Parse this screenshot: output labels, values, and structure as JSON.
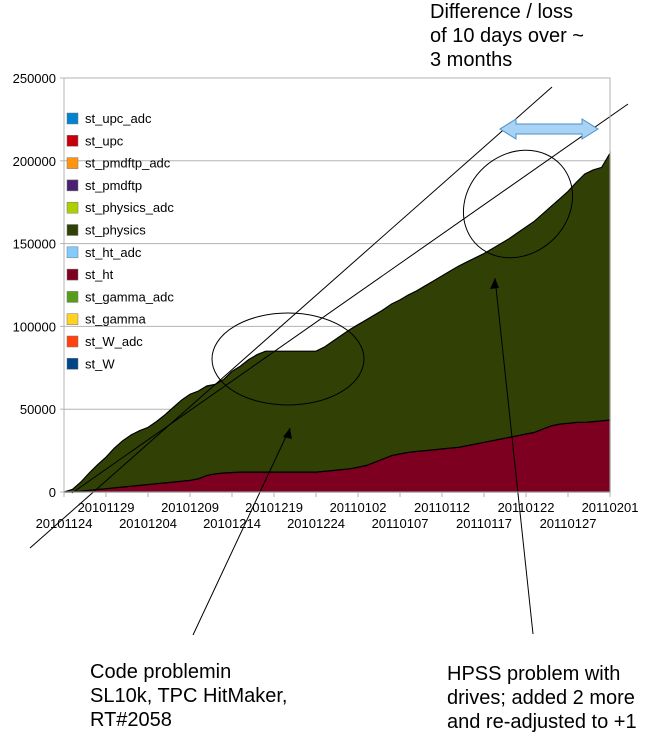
{
  "chart_data": {
    "type": "area",
    "stacked": true,
    "title": "",
    "xlabel": "",
    "ylabel": "",
    "ylim": [
      0,
      250000
    ],
    "y_ticks": [
      0,
      50000,
      100000,
      150000,
      200000,
      250000
    ],
    "y_tick_labels": [
      "0",
      "50000",
      "100000",
      "150000",
      "200000",
      "250000"
    ],
    "grid": true,
    "legend_position": "top-left",
    "x_tick_labels": [
      "20101124",
      "20101129",
      "20101204",
      "20101209",
      "20101214",
      "20101219",
      "20101224",
      "20110102",
      "20110107",
      "20110112",
      "20110117",
      "20110122",
      "20110127",
      "20110201"
    ],
    "x": [
      "20101124",
      "20101125",
      "20101126",
      "20101127",
      "20101128",
      "20101129",
      "20101130",
      "20101201",
      "20101202",
      "20101203",
      "20101204",
      "20101205",
      "20101206",
      "20101207",
      "20101208",
      "20101209",
      "20101210",
      "20101211",
      "20101212",
      "20101213",
      "20101214",
      "20101215",
      "20101216",
      "20101217",
      "20101218",
      "20101219",
      "20101220",
      "20101221",
      "20101222",
      "20101223",
      "20101224",
      "20101229",
      "20101230",
      "20101231",
      "20110101",
      "20110102",
      "20110103",
      "20110104",
      "20110105",
      "20110106",
      "20110107",
      "20110108",
      "20110109",
      "20110110",
      "20110111",
      "20110112",
      "20110113",
      "20110114",
      "20110115",
      "20110116",
      "20110117",
      "20110118",
      "20110119",
      "20110120",
      "20110121",
      "20110122",
      "20110123",
      "20110124",
      "20110125",
      "20110126",
      "20110127",
      "20110128",
      "20110129",
      "20110130",
      "20110131",
      "20110201"
    ],
    "legend_order": [
      "st_upc_adc",
      "st_upc",
      "st_pmdftp_adc",
      "st_pmdftp",
      "st_physics_adc",
      "st_physics",
      "st_ht_adc",
      "st_ht",
      "st_gamma_adc",
      "st_gamma",
      "st_W_adc",
      "st_W"
    ],
    "series": [
      {
        "name": "st_W",
        "color": "#004586",
        "values": [
          0,
          0,
          0,
          0,
          0,
          0,
          0,
          0,
          0,
          0,
          0,
          0,
          0,
          0,
          0,
          0,
          0,
          0,
          0,
          0,
          0,
          0,
          0,
          0,
          0,
          0,
          0,
          0,
          0,
          0,
          0,
          0,
          0,
          0,
          0,
          0,
          0,
          0,
          0,
          0,
          0,
          0,
          0,
          0,
          0,
          0,
          0,
          0,
          0,
          0,
          0,
          0,
          0,
          0,
          0,
          0,
          0,
          0,
          0,
          0,
          0,
          0,
          0,
          0,
          0,
          0
        ]
      },
      {
        "name": "st_W_adc",
        "color": "#ff420e",
        "values": [
          0,
          0,
          0,
          0,
          0,
          0,
          0,
          0,
          0,
          0,
          0,
          0,
          0,
          0,
          0,
          0,
          0,
          0,
          0,
          0,
          0,
          0,
          0,
          0,
          0,
          0,
          0,
          0,
          0,
          0,
          0,
          0,
          0,
          0,
          0,
          0,
          0,
          0,
          0,
          0,
          0,
          0,
          0,
          0,
          0,
          0,
          0,
          0,
          0,
          0,
          0,
          0,
          0,
          0,
          0,
          0,
          0,
          0,
          0,
          0,
          0,
          0,
          0,
          0,
          0,
          0
        ]
      },
      {
        "name": "st_gamma",
        "color": "#ffd320",
        "values": [
          0,
          0,
          0,
          0,
          0,
          0,
          0,
          0,
          0,
          0,
          0,
          0,
          0,
          0,
          0,
          0,
          0,
          0,
          0,
          0,
          0,
          0,
          0,
          0,
          0,
          0,
          0,
          0,
          0,
          0,
          0,
          0,
          0,
          0,
          0,
          0,
          0,
          0,
          0,
          0,
          0,
          0,
          0,
          0,
          0,
          0,
          0,
          0,
          0,
          0,
          0,
          0,
          0,
          0,
          0,
          0,
          0,
          0,
          0,
          0,
          0,
          0,
          0,
          0,
          0,
          0
        ]
      },
      {
        "name": "st_gamma_adc",
        "color": "#579d1c",
        "values": [
          0,
          0,
          0,
          0,
          0,
          0,
          0,
          0,
          0,
          0,
          0,
          0,
          0,
          0,
          0,
          0,
          0,
          0,
          0,
          0,
          0,
          0,
          0,
          0,
          0,
          0,
          0,
          0,
          0,
          0,
          0,
          0,
          0,
          0,
          0,
          0,
          0,
          0,
          0,
          0,
          0,
          0,
          0,
          0,
          0,
          0,
          0,
          0,
          0,
          0,
          0,
          0,
          0,
          0,
          0,
          0,
          0,
          0,
          0,
          0,
          0,
          0,
          0,
          0,
          0,
          0
        ]
      },
      {
        "name": "st_ht",
        "color": "#7e0021",
        "values": [
          0,
          0,
          500,
          1000,
          1500,
          2000,
          2500,
          3000,
          3500,
          4000,
          4500,
          5000,
          5500,
          6000,
          6500,
          7000,
          8000,
          10000,
          11000,
          11500,
          11800,
          12000,
          12000,
          12000,
          12000,
          12000,
          12000,
          12000,
          12000,
          12000,
          12000,
          12500,
          13000,
          13500,
          14000,
          15000,
          16000,
          18000,
          20000,
          22000,
          23000,
          24000,
          24500,
          25000,
          25500,
          26000,
          26500,
          27000,
          28000,
          29000,
          30000,
          31000,
          32000,
          33000,
          34000,
          35000,
          36000,
          38000,
          40000,
          41000,
          41500,
          42000,
          42000,
          42500,
          43000,
          43500
        ]
      },
      {
        "name": "st_ht_adc",
        "color": "#83caff",
        "values": [
          0,
          0,
          0,
          0,
          0,
          0,
          0,
          0,
          0,
          0,
          0,
          0,
          0,
          0,
          0,
          0,
          0,
          0,
          0,
          0,
          0,
          0,
          0,
          0,
          0,
          0,
          0,
          0,
          0,
          0,
          0,
          0,
          0,
          0,
          0,
          0,
          0,
          0,
          0,
          0,
          0,
          0,
          0,
          0,
          0,
          0,
          0,
          0,
          0,
          0,
          0,
          0,
          0,
          0,
          0,
          0,
          0,
          0,
          0,
          0,
          0,
          0,
          0,
          0,
          0,
          0
        ]
      },
      {
        "name": "st_physics",
        "color": "#314004",
        "values": [
          0,
          1500,
          5500,
          10500,
          15000,
          19000,
          24000,
          28000,
          31000,
          33000,
          34500,
          37500,
          41000,
          45000,
          49000,
          52000,
          53000,
          54000,
          54000,
          56500,
          61000,
          64000,
          68000,
          71000,
          73000,
          73000,
          73000,
          73000,
          73000,
          73000,
          73000,
          75000,
          78000,
          81000,
          84000,
          86000,
          88000,
          89000,
          90000,
          91500,
          93000,
          95000,
          97000,
          99500,
          102000,
          104500,
          107000,
          109500,
          111000,
          112500,
          114000,
          116000,
          118000,
          120000,
          122500,
          125000,
          127500,
          130000,
          132500,
          136000,
          140000,
          145000,
          150000,
          152000,
          153000,
          161000
        ]
      },
      {
        "name": "st_physics_adc",
        "color": "#aecf00",
        "values": [
          0,
          0,
          0,
          0,
          0,
          0,
          0,
          0,
          0,
          0,
          0,
          0,
          0,
          0,
          0,
          0,
          0,
          0,
          0,
          0,
          0,
          0,
          0,
          0,
          0,
          0,
          0,
          0,
          0,
          0,
          0,
          0,
          0,
          0,
          0,
          0,
          0,
          0,
          0,
          0,
          0,
          0,
          0,
          0,
          0,
          0,
          0,
          0,
          0,
          0,
          0,
          0,
          0,
          0,
          0,
          0,
          0,
          0,
          0,
          0,
          0,
          0,
          0,
          0,
          0,
          0
        ]
      },
      {
        "name": "st_pmdftp",
        "color": "#4b1f6f",
        "values": [
          0,
          0,
          0,
          0,
          0,
          0,
          0,
          0,
          0,
          0,
          0,
          0,
          0,
          0,
          0,
          0,
          0,
          0,
          0,
          0,
          0,
          0,
          0,
          0,
          0,
          0,
          0,
          0,
          0,
          0,
          0,
          0,
          0,
          0,
          0,
          0,
          0,
          0,
          0,
          0,
          0,
          0,
          0,
          0,
          0,
          0,
          0,
          0,
          0,
          0,
          0,
          0,
          0,
          0,
          0,
          0,
          0,
          0,
          0,
          0,
          0,
          0,
          0,
          0,
          0,
          0
        ]
      },
      {
        "name": "st_pmdftp_adc",
        "color": "#ff950e",
        "values": [
          0,
          0,
          0,
          0,
          0,
          0,
          0,
          0,
          0,
          0,
          0,
          0,
          0,
          0,
          0,
          0,
          0,
          0,
          0,
          0,
          0,
          0,
          0,
          0,
          0,
          0,
          0,
          0,
          0,
          0,
          0,
          0,
          0,
          0,
          0,
          0,
          0,
          0,
          0,
          0,
          0,
          0,
          0,
          0,
          0,
          0,
          0,
          0,
          0,
          0,
          0,
          0,
          0,
          0,
          0,
          0,
          0,
          0,
          0,
          0,
          0,
          0,
          0,
          0,
          0,
          0
        ]
      },
      {
        "name": "st_upc",
        "color": "#c5000b",
        "values": [
          0,
          0,
          0,
          0,
          0,
          0,
          0,
          0,
          0,
          0,
          0,
          0,
          0,
          0,
          0,
          0,
          0,
          0,
          0,
          0,
          0,
          0,
          0,
          0,
          0,
          0,
          0,
          0,
          0,
          0,
          0,
          0,
          0,
          0,
          0,
          0,
          0,
          0,
          0,
          0,
          0,
          0,
          0,
          0,
          0,
          0,
          0,
          0,
          0,
          0,
          0,
          0,
          0,
          0,
          0,
          0,
          0,
          0,
          0,
          0,
          0,
          0,
          0,
          0,
          0,
          0
        ]
      },
      {
        "name": "st_upc_adc",
        "color": "#0084d1",
        "values": [
          0,
          0,
          0,
          0,
          0,
          0,
          0,
          0,
          0,
          0,
          0,
          0,
          0,
          0,
          0,
          0,
          0,
          0,
          0,
          0,
          0,
          0,
          0,
          0,
          0,
          0,
          0,
          0,
          0,
          0,
          0,
          0,
          0,
          0,
          0,
          0,
          0,
          0,
          0,
          0,
          0,
          0,
          0,
          0,
          0,
          0,
          0,
          0,
          0,
          0,
          0,
          0,
          0,
          0,
          0,
          0,
          0,
          0,
          0,
          0,
          0,
          0,
          0,
          0,
          0,
          0
        ]
      }
    ]
  },
  "annotations": {
    "top_right": "Difference / loss\nof 10 days over ~\n3 months",
    "bottom_left": "Code problemin\nSL10k, TPC HitMaker,\nRT#2058",
    "bottom_right": "HPSS problem with\ndrives; added 2 more\nand re-adjusted to +1"
  }
}
